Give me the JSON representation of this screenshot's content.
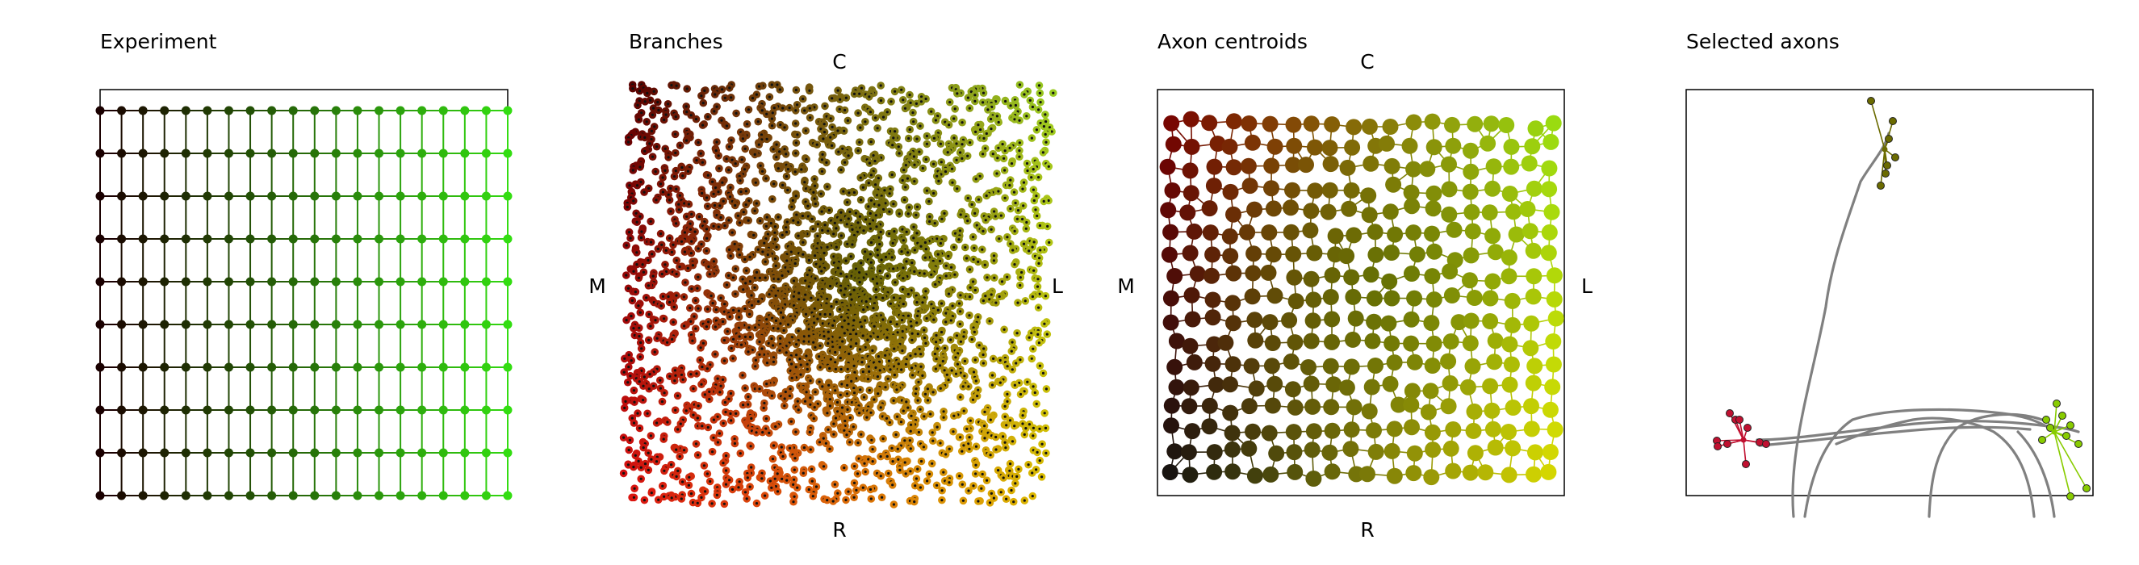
{
  "chart_data": [
    {
      "type": "scatter",
      "title": "Experiment",
      "grid_nodes": {
        "columns": 20,
        "rows": 10
      },
      "color_gradient": {
        "left": "#1a0000",
        "right": "#33dd11"
      },
      "axes_box": "top-and-left only",
      "connections": "row and column grid lines"
    },
    {
      "type": "scatter",
      "title": "Branches",
      "labels": {
        "top": "C",
        "bottom": "R",
        "left": "M",
        "right": "L"
      },
      "colors": {
        "top_left": "#5a0000",
        "top_right": "#99cc22",
        "bottom_left": "#dd1111",
        "bottom_right": "#ddbb00",
        "center": "#2d5500"
      },
      "point_count": 2600,
      "marker_center_color": "#111111"
    },
    {
      "type": "scatter",
      "title": "Axon centroids",
      "labels": {
        "top": "C",
        "bottom": "R",
        "left": "M",
        "right": "L"
      },
      "colors": {
        "top_left": "#7a0000",
        "top_right": "#99e011",
        "bottom_left": "#111111",
        "bottom_right": "#dddd00",
        "center": "#4a6600"
      },
      "point_count": 340,
      "connections": "nearest-neighbour mesh"
    },
    {
      "type": "line",
      "title": "Selected axons",
      "axon_color": "#808080",
      "clusters": [
        {
          "name": "top",
          "color": "#6b6b00"
        },
        {
          "name": "left",
          "color": "#c01030"
        },
        {
          "name": "right",
          "color": "#88cc00"
        }
      ]
    }
  ]
}
